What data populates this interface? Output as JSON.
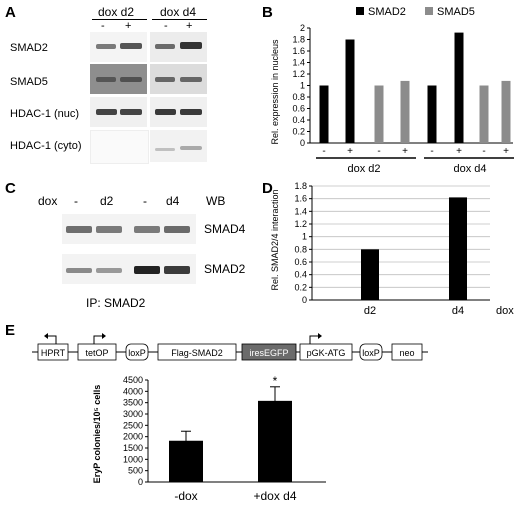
{
  "panel_a": {
    "letter": "A",
    "group1": {
      "label": "dox  d2",
      "lanes": [
        "-",
        "+"
      ]
    },
    "group2": {
      "label": "dox  d4",
      "lanes": [
        "-",
        "+"
      ]
    },
    "rows": [
      "SMAD2",
      "SMAD5",
      "HDAC-1 (nuc)",
      "HDAC-1 (cyto)"
    ]
  },
  "panel_b": {
    "letter": "B",
    "chart_data": {
      "type": "bar",
      "ylabel": "Rel. expression in nucleus",
      "ylim": [
        0,
        2
      ],
      "yticks": [
        "0",
        "0.2",
        "0.4",
        "0.6",
        "0.8",
        "1",
        "1.2",
        "1.4",
        "1.6",
        "1.8",
        "2"
      ],
      "legend": [
        "SMAD2",
        "SMAD5"
      ],
      "legend_position": "top",
      "lane_labels": [
        "-",
        "+",
        "-",
        "+",
        "-",
        "+",
        "-",
        "+"
      ],
      "group_labels": [
        "dox d2",
        "dox d4"
      ],
      "series": [
        {
          "name": "SMAD2",
          "color": "#000000",
          "values": [
            1.0,
            1.8,
            1.0,
            1.92
          ]
        },
        {
          "name": "SMAD5",
          "color": "#8c8c8c",
          "values": [
            1.0,
            1.08,
            1.0,
            1.08
          ]
        }
      ]
    }
  },
  "panel_c": {
    "letter": "C",
    "header": {
      "dox": "dox",
      "lanes": [
        "-",
        "d2",
        "-",
        "d4"
      ],
      "wb": "WB"
    },
    "rows": [
      "SMAD4",
      "SMAD2"
    ],
    "ip_label": "IP: SMAD2"
  },
  "panel_d": {
    "letter": "D",
    "chart_data": {
      "type": "bar",
      "ylabel": "Rel. SMAD2/4 interaction",
      "ylim": [
        0,
        1.8
      ],
      "yticks": [
        "0",
        "0.2",
        "0.4",
        "0.6",
        "0.8",
        "1",
        "1.2",
        "1.4",
        "1.6",
        "1.8"
      ],
      "categories": [
        "d2",
        "d4"
      ],
      "values": [
        0.8,
        1.62
      ],
      "x_extra_label": "dox",
      "grid": true,
      "color": "#000000"
    }
  },
  "panel_e": {
    "letter": "E",
    "construct": [
      "HPRT",
      "tetOP",
      "loxP",
      "Flag-SMAD2",
      "iresEGFP",
      "pGK-ATG",
      "loxP",
      "neo"
    ],
    "chart_data": {
      "type": "bar",
      "ylabel": "EryP colonies/10⁵ cells",
      "ylim": [
        0,
        4500
      ],
      "yticks": [
        "0",
        "500",
        "1000",
        "1500",
        "2000",
        "2500",
        "3000",
        "3500",
        "4000",
        "4500"
      ],
      "categories": [
        "-dox",
        "+dox d4"
      ],
      "values": [
        1820,
        3580
      ],
      "errors": [
        420,
        620
      ],
      "annotation": "*",
      "color": "#000000"
    }
  }
}
